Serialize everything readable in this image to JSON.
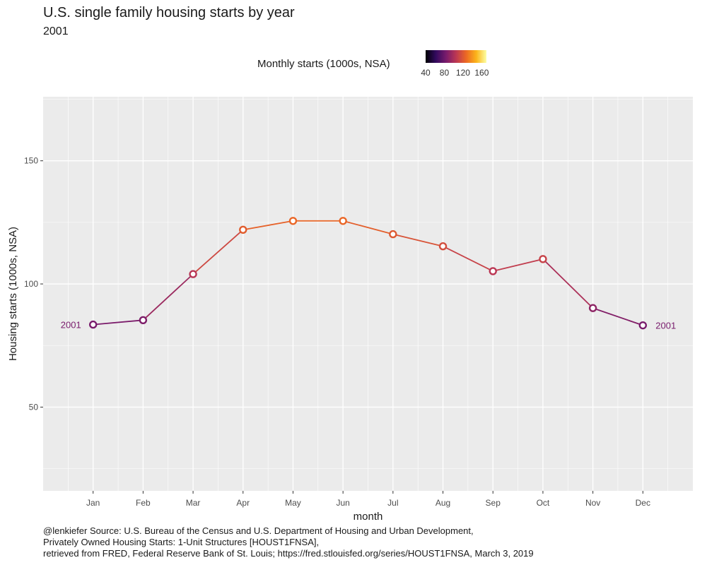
{
  "chart_data": {
    "type": "line",
    "title": "U.S. single family housing starts by year",
    "subtitle": "2001",
    "xlabel": "month",
    "ylabel": "Housing starts (1000s, NSA)",
    "categories": [
      "Jan",
      "Feb",
      "Mar",
      "Apr",
      "May",
      "Jun",
      "Jul",
      "Aug",
      "Sep",
      "Oct",
      "Nov",
      "Dec"
    ],
    "series": [
      {
        "name": "2001",
        "values": [
          83.5,
          85.3,
          104.0,
          122.0,
          125.6,
          125.6,
          120.2,
          115.3,
          105.2,
          110.1,
          90.2,
          83.2
        ]
      }
    ],
    "ylim": [
      16,
      176
    ],
    "yticks": [
      50,
      100,
      150
    ],
    "grid": true,
    "legend": {
      "title": "Monthly starts (1000s, NSA)",
      "placement": "top",
      "range": [
        40,
        170
      ],
      "ticks": [
        40,
        80,
        120,
        160
      ],
      "colors": [
        "#000004",
        "#320a5e",
        "#781b6c",
        "#bb3754",
        "#ec6824",
        "#fbb41a",
        "#fcffa4"
      ]
    },
    "annotations": {
      "start_label": "2001",
      "end_label": "2001"
    }
  },
  "caption": {
    "line1": "@lenkiefer Source: U.S. Bureau of the Census and U.S. Department of Housing and Urban Development,",
    "line2": "Privately Owned Housing Starts: 1-Unit Structures [HOUST1FNSA],",
    "line3": "retrieved from FRED, Federal Reserve Bank of St. Louis; https://fred.stlouisfed.org/series/HOUST1FNSA, March 3, 2019"
  },
  "colors": {
    "panel": "#ebebeb",
    "grid": "#ffffff"
  }
}
